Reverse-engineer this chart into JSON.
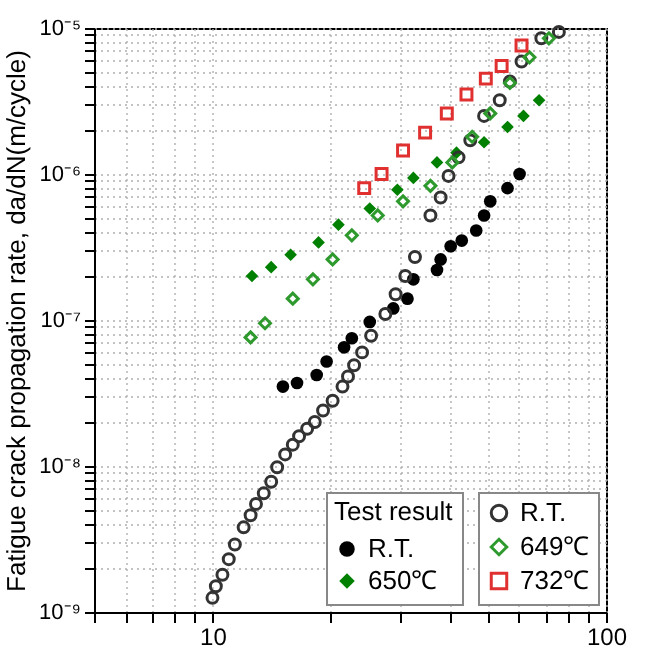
{
  "chart_data": {
    "type": "scatter",
    "ylabel": "Fatigue crack propagation rate, da/dN(m/cycle)",
    "log": "xy",
    "grid": true,
    "legend_title": "Test result",
    "legend": "bottom right",
    "xlim": [
      5,
      100
    ],
    "xticks": [
      {
        "value": 5,
        "label": null
      },
      {
        "value": 6,
        "label": null
      },
      {
        "value": 7,
        "label": null
      },
      {
        "value": 8,
        "label": null
      },
      {
        "value": 9,
        "label": null
      },
      10,
      {
        "value": 20,
        "label": null
      },
      {
        "value": 30,
        "label": null
      },
      {
        "value": 40,
        "label": null
      },
      {
        "value": 50,
        "label": null
      },
      {
        "value": 60,
        "label": null
      },
      {
        "value": 70,
        "label": null
      },
      {
        "value": 80,
        "label": null
      },
      {
        "value": 90,
        "label": null
      },
      100
    ],
    "ylim": [
      1e-09,
      1e-05
    ],
    "yticks": [
      {
        "value": 1e-09,
        "label": "10⁻⁹"
      },
      {
        "value": 2e-09,
        "label": null
      },
      {
        "value": 3e-09,
        "label": null
      },
      {
        "value": 4e-09,
        "label": null
      },
      {
        "value": 5e-09,
        "label": null
      },
      {
        "value": 6e-09,
        "label": null
      },
      {
        "value": 7e-09,
        "label": null
      },
      {
        "value": 8e-09,
        "label": null
      },
      {
        "value": 9e-09,
        "label": null
      },
      {
        "value": 1e-08,
        "label": "10⁻⁸"
      },
      {
        "value": 2e-08,
        "label": null
      },
      {
        "value": 3e-08,
        "label": null
      },
      {
        "value": 4e-08,
        "label": null
      },
      {
        "value": 5e-08,
        "label": null
      },
      {
        "value": 6e-08,
        "label": null
      },
      {
        "value": 7e-08,
        "label": null
      },
      {
        "value": 8e-08,
        "label": null
      },
      {
        "value": 9e-08,
        "label": null
      },
      {
        "value": 1e-07,
        "label": "10⁻⁷"
      },
      {
        "value": 2e-07,
        "label": null
      },
      {
        "value": 3e-07,
        "label": null
      },
      {
        "value": 4e-07,
        "label": null
      },
      {
        "value": 5e-07,
        "label": null
      },
      {
        "value": 6e-07,
        "label": null
      },
      {
        "value": 7e-07,
        "label": null
      },
      {
        "value": 8e-07,
        "label": null
      },
      {
        "value": 9e-07,
        "label": null
      },
      {
        "value": 1e-06,
        "label": "10⁻⁶"
      },
      {
        "value": 2e-06,
        "label": null
      },
      {
        "value": 3e-06,
        "label": null
      },
      {
        "value": 4e-06,
        "label": null
      },
      {
        "value": 5e-06,
        "label": null
      },
      {
        "value": 6e-06,
        "label": null
      },
      {
        "value": 7e-06,
        "label": null
      },
      {
        "value": 8e-06,
        "label": null
      },
      {
        "value": 9e-06,
        "label": null
      },
      {
        "value": 1e-05,
        "label": "10⁻⁵"
      }
    ],
    "series": [
      {
        "name": "R.T.",
        "color": "#000000",
        "marker": "circle",
        "x": [
          15.1,
          16.4,
          18.4,
          19.5,
          21.6,
          22.6,
          25.1,
          28.8,
          31.3,
          32.4,
          37.2,
          38.0,
          40.3,
          43,
          46.8,
          49,
          50.8,
          56.2,
          60.3
        ],
        "values": [
          3.5e-08,
          3.7e-08,
          4.2e-08,
          5.2e-08,
          6.5e-08,
          7.5e-08,
          9.7e-08,
          1.2e-07,
          1.4e-07,
          1.9e-07,
          2.2e-07,
          2.6e-07,
          3.2e-07,
          3.5e-07,
          4.1e-07,
          5.2e-07,
          6.5e-07,
          8e-07,
          1e-06
        ]
      },
      {
        "name": "650℃",
        "color": "#008000",
        "marker": "diamond",
        "x": [
          12.6,
          14.1,
          15.8,
          18.6,
          20.9,
          25.1,
          29.5,
          32.4,
          37.2,
          41.7,
          49,
          56.2,
          61.7,
          67.6
        ],
        "values": [
          2e-07,
          2.3e-07,
          2.8e-07,
          3.4e-07,
          4.5e-07,
          5.8e-07,
          7.8e-07,
          9.4e-07,
          1.2e-06,
          1.4e-06,
          1.65e-06,
          2.1e-06,
          2.5e-06,
          3.2e-06
        ]
      },
      {
        "name": "R.T.",
        "color": "#333333",
        "marker": "circle",
        "x": [
          10,
          10.2,
          10.6,
          11.0,
          11.4,
          12.0,
          12.5,
          12.9,
          13.5,
          14.1,
          14.6,
          15.3,
          16.0,
          16.6,
          17.4,
          18.2,
          19.1,
          20.2,
          21.4,
          22.1,
          22.9,
          24.0,
          25.3,
          27.5,
          29.2,
          30.9,
          32.7,
          35.8,
          38,
          39.8,
          42.2,
          45.2,
          49,
          53.7,
          57,
          61,
          68.5,
          75.9
        ],
        "values": [
          1.25e-09,
          1.5e-09,
          1.8e-09,
          2.3e-09,
          2.9e-09,
          3.8e-09,
          4.6e-09,
          5.5e-09,
          6.5e-09,
          7.8e-09,
          9.8e-09,
          1.2e-08,
          1.4e-08,
          1.6e-08,
          1.8e-08,
          2e-08,
          2.4e-08,
          2.8e-08,
          3.5e-08,
          4.1e-08,
          4.9e-08,
          6e-08,
          7.8e-08,
          1.1e-07,
          1.5e-07,
          2e-07,
          2.7e-07,
          5.2e-07,
          6.9e-07,
          9.7e-07,
          1.3e-06,
          1.7e-06,
          2.5e-06,
          3.2e-06,
          4.3e-06,
          5.9e-06,
          8.5e-06,
          9.4e-06
        ]
      },
      {
        "name": "649℃",
        "color": "#2e9a2e",
        "marker": "diamond",
        "x": [
          12.5,
          13.6,
          16.0,
          18,
          20.2,
          22.6,
          26.3,
          30.5,
          35.8,
          40.7,
          45.7,
          50.8,
          57,
          63.9,
          71.6
        ],
        "values": [
          7.6e-08,
          9.5e-08,
          1.4e-07,
          1.9e-07,
          2.6e-07,
          3.8e-07,
          5.2e-07,
          6.5e-07,
          8.3e-07,
          1.2e-06,
          1.8e-06,
          2.6e-06,
          4.2e-06,
          6.3e-06,
          8.5e-06
        ]
      },
      {
        "name": "732℃",
        "color": "#e03030",
        "marker": "square",
        "x": [
          24.3,
          26.9,
          30.5,
          34.7,
          39.4,
          44.2,
          49.5,
          54.3,
          61
        ],
        "values": [
          8e-07,
          1e-06,
          1.45e-06,
          1.92e-06,
          2.6e-06,
          3.5e-06,
          4.5e-06,
          5.5e-06,
          7.6e-06
        ]
      }
    ]
  }
}
